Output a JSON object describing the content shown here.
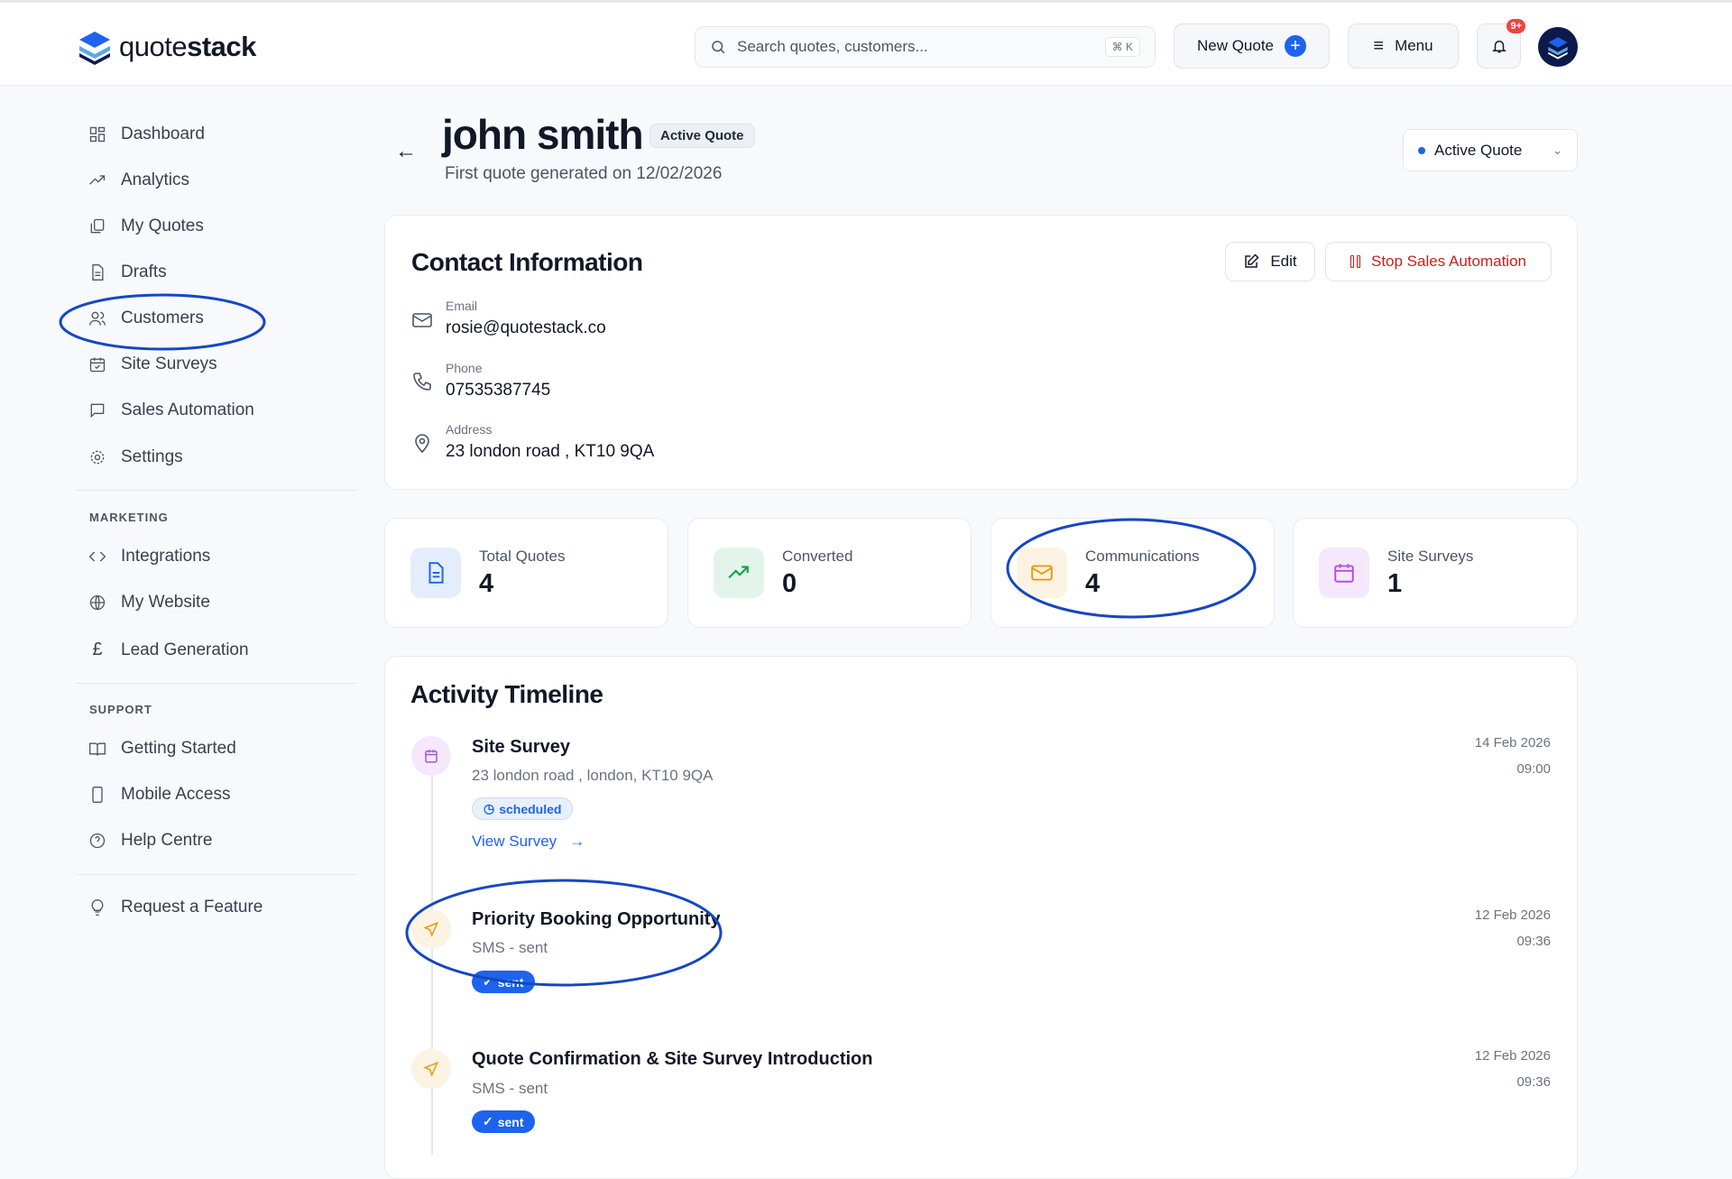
{
  "header": {
    "brand_light": "quote",
    "brand_bold": "stack",
    "search_placeholder": "Search quotes, customers...",
    "search_shortcut": "⌘ K",
    "new_quote": "New Quote",
    "menu": "Menu",
    "notif_count": "9+"
  },
  "sidebar": {
    "items": [
      {
        "label": "Dashboard",
        "icon": "dashboard-icon"
      },
      {
        "label": "Analytics",
        "icon": "trend-icon"
      },
      {
        "label": "My Quotes",
        "icon": "copy-icon"
      },
      {
        "label": "Drafts",
        "icon": "file-icon"
      },
      {
        "label": "Customers",
        "icon": "users-icon"
      },
      {
        "label": "Site Surveys",
        "icon": "calendar-check-icon"
      },
      {
        "label": "Sales Automation",
        "icon": "message-icon"
      },
      {
        "label": "Settings",
        "icon": "gear-icon"
      }
    ],
    "marketing_title": "MARKETING",
    "marketing": [
      {
        "label": "Integrations"
      },
      {
        "label": "My Website"
      },
      {
        "label": "Lead Generation"
      }
    ],
    "support_title": "SUPPORT",
    "support": [
      {
        "label": "Getting Started"
      },
      {
        "label": "Mobile Access"
      },
      {
        "label": "Help Centre"
      }
    ],
    "request": "Request a Feature"
  },
  "page": {
    "title": "john smith",
    "badge": "Active Quote",
    "subtitle": "First quote generated on 12/02/2026",
    "status_select": "Active Quote"
  },
  "contact": {
    "title": "Contact Information",
    "edit": "Edit",
    "stop": "Stop Sales Automation",
    "email_label": "Email",
    "email": "rosie@quotestack.co",
    "phone_label": "Phone",
    "phone": "07535387745",
    "address_label": "Address",
    "address": "23 london road , KT10 9QA"
  },
  "stats": [
    {
      "label": "Total Quotes",
      "value": "4"
    },
    {
      "label": "Converted",
      "value": "0"
    },
    {
      "label": "Communications",
      "value": "4"
    },
    {
      "label": "Site Surveys",
      "value": "1"
    }
  ],
  "timeline": {
    "title": "Activity Timeline",
    "items": [
      {
        "title": "Site Survey",
        "sub": "23 london road , london, KT10 9QA",
        "status": "scheduled",
        "link": "View Survey",
        "date": "14 Feb 2026",
        "time": "09:00"
      },
      {
        "title": "Priority Booking Opportunity",
        "sub": "SMS - sent",
        "status": "sent",
        "date": "12 Feb 2026",
        "time": "09:36"
      },
      {
        "title": "Quote Confirmation & Site Survey Introduction",
        "sub": "SMS - sent",
        "status": "sent",
        "date": "12 Feb 2026",
        "time": "09:36"
      }
    ]
  },
  "colors": {
    "accent": "#1d63ed",
    "danger": "#c81e1e",
    "annotation": "#1447c2"
  }
}
